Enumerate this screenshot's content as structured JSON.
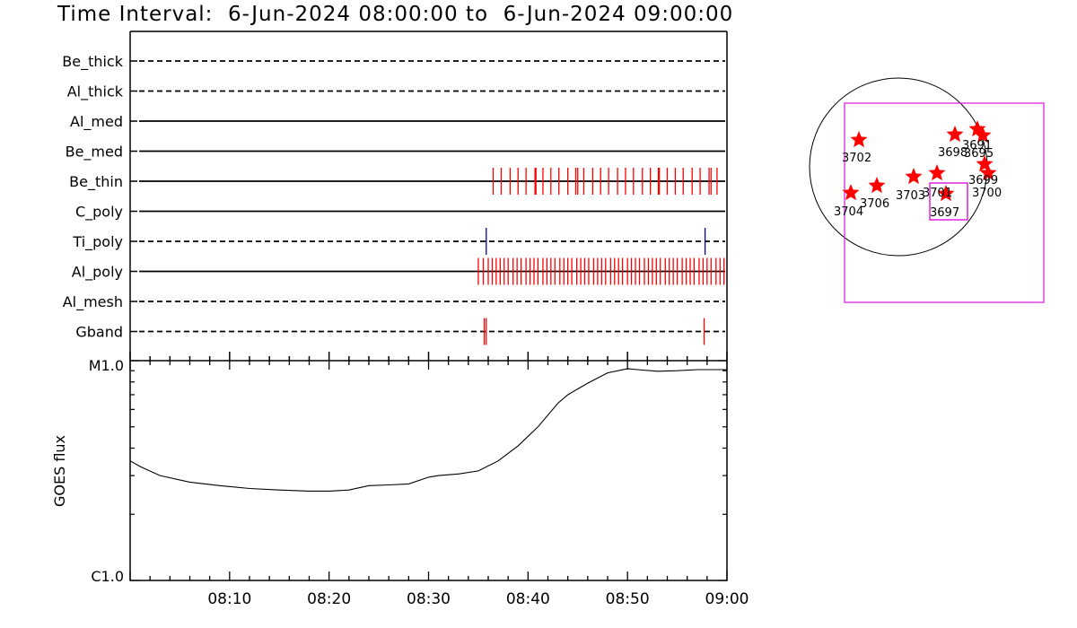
{
  "title": "Time Interval:  6-Jun-2024 08:00:00 to  6-Jun-2024 09:00:00",
  "chart_data": [
    {
      "type": "timeline",
      "x_tick_labels": [
        "08:10",
        "08:20",
        "08:30",
        "08:40",
        "08:50",
        "09:00"
      ],
      "x_range_minutes": [
        0,
        60
      ],
      "channels": [
        {
          "name": "Be_thick",
          "line": "dashed",
          "events": []
        },
        {
          "name": "Al_thick",
          "line": "dashed",
          "events": []
        },
        {
          "name": "Al_med",
          "line": "solid",
          "events": []
        },
        {
          "name": "Be_med",
          "line": "solid",
          "events": []
        },
        {
          "name": "Be_thin",
          "line": "solid",
          "color": "#ff0000",
          "events": [
            36.5,
            37.3,
            38.2,
            39.0,
            39.8,
            40.7,
            40.8,
            41.5,
            42.3,
            43.1,
            44.0,
            44.8,
            45.0,
            45.6,
            46.5,
            47.3,
            48.1,
            49.0,
            49.8,
            50.6,
            51.5,
            52.3,
            53.1,
            53.2,
            54.0,
            54.8,
            55.6,
            56.5,
            57.3,
            58.2,
            58.4,
            59.0
          ]
        },
        {
          "name": "C_poly",
          "line": "solid",
          "events": []
        },
        {
          "name": "Ti_poly",
          "line": "dashed",
          "color": "#0000aa",
          "events": [
            35.8,
            57.8
          ]
        },
        {
          "name": "Al_poly",
          "line": "solid",
          "color": "#ff0000",
          "events": [
            35.0,
            35.5,
            36.0,
            36.4,
            36.8,
            37.2,
            37.6,
            38.0,
            38.5,
            38.9,
            39.3,
            39.8,
            40.2,
            40.6,
            41.0,
            41.5,
            41.9,
            42.3,
            42.7,
            43.2,
            43.6,
            44.0,
            44.4,
            44.9,
            45.3,
            45.7,
            46.1,
            46.6,
            47.0,
            47.4,
            47.8,
            48.3,
            48.7,
            49.1,
            49.5,
            50.0,
            50.4,
            50.8,
            51.2,
            51.7,
            52.1,
            52.5,
            52.9,
            53.3,
            53.8,
            54.2,
            54.6,
            55.0,
            55.5,
            55.9,
            56.3,
            56.7,
            57.2,
            57.6,
            58.0,
            58.4,
            58.9,
            59.3,
            59.7
          ]
        },
        {
          "name": "Al_mesh",
          "line": "dashed",
          "events": []
        },
        {
          "name": "Gband",
          "line": "dashed",
          "color": "#ff0000",
          "events": [
            35.6,
            35.8,
            57.7
          ]
        }
      ]
    },
    {
      "type": "line",
      "ylabel": "GOES flux",
      "y_scale": "log",
      "y_tick_labels": [
        "C1.0",
        "M1.0"
      ],
      "ylim": [
        "C1.0",
        "M1.0"
      ],
      "x_range_minutes": [
        0,
        60
      ],
      "x_tick_labels": [
        "08:10",
        "08:20",
        "08:30",
        "08:40",
        "08:50",
        "09:00"
      ],
      "series": [
        {
          "x": [
            0,
            1,
            3,
            6,
            9,
            12,
            15,
            18,
            20,
            22,
            24,
            26,
            28,
            30,
            31,
            33,
            35,
            37,
            39,
            41,
            43,
            44,
            46,
            48,
            50,
            51,
            53,
            55,
            57,
            58,
            60
          ],
          "y": [
            3.5e-06,
            3.3e-06,
            3e-06,
            2.8e-06,
            2.7e-06,
            2.62e-06,
            2.58e-06,
            2.55e-06,
            2.55e-06,
            2.58e-06,
            2.7e-06,
            2.72e-06,
            2.75e-06,
            2.95e-06,
            3e-06,
            3.05e-06,
            3.15e-06,
            3.5e-06,
            4.1e-06,
            5e-06,
            6.4e-06,
            7e-06,
            7.9e-06,
            8.8e-06,
            9.2e-06,
            9.1e-06,
            8.95e-06,
            9e-06,
            9.1e-06,
            9.1e-06,
            9.1e-06
          ]
        }
      ]
    },
    {
      "type": "scatter",
      "description_free": true,
      "points": [
        {
          "label": "3702"
        },
        {
          "label": "3698"
        },
        {
          "label": "3691"
        },
        {
          "label": "3695"
        },
        {
          "label": "3699"
        },
        {
          "label": "3700"
        },
        {
          "label": "3703"
        },
        {
          "label": "3701"
        },
        {
          "label": "3697"
        },
        {
          "label": "3704"
        },
        {
          "label": "3706"
        }
      ]
    }
  ]
}
